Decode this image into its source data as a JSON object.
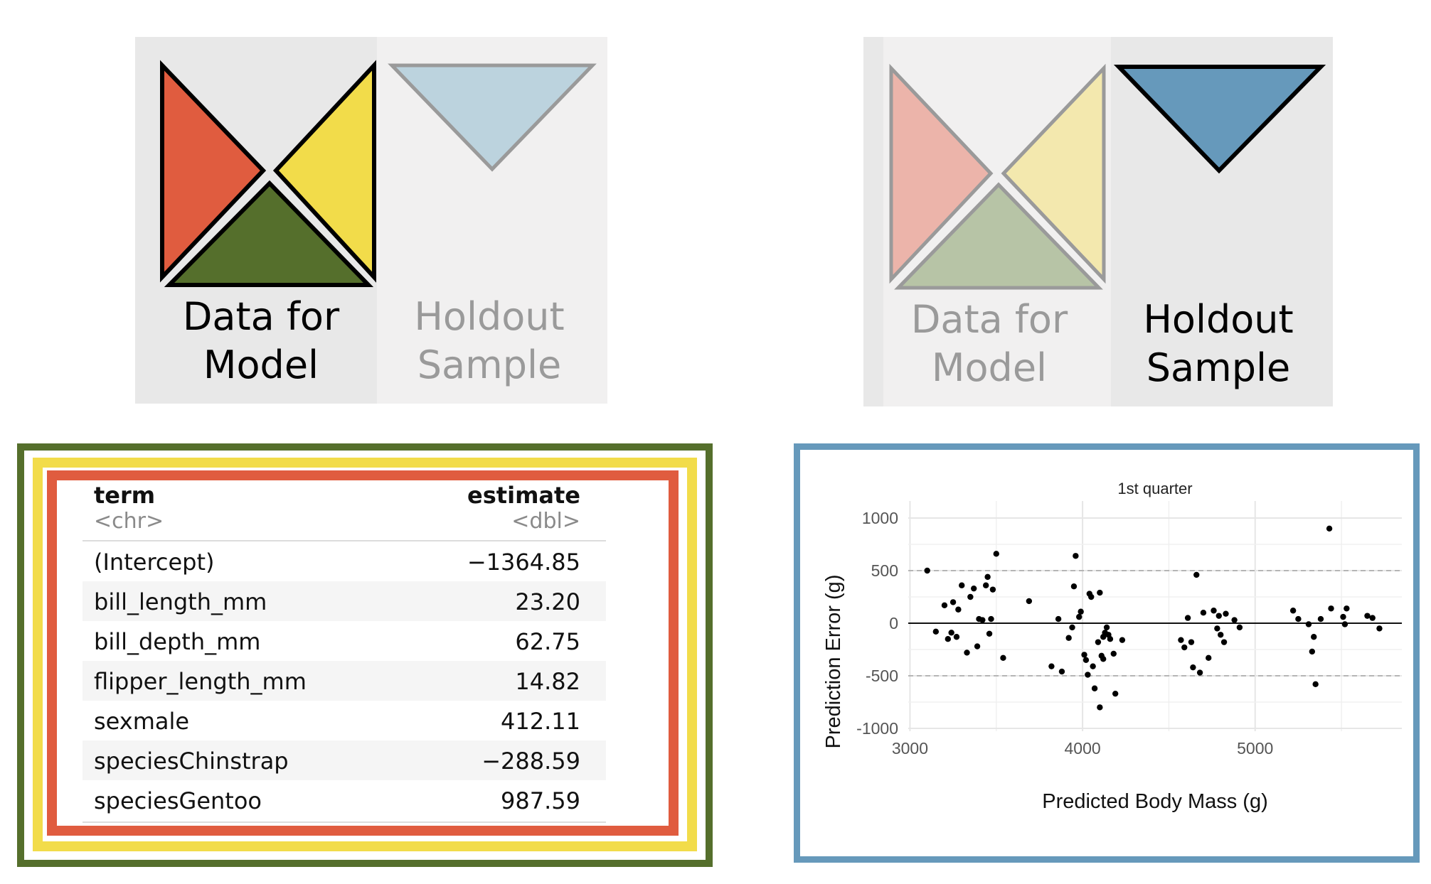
{
  "left_panel": {
    "model_label": "Data for\nModel",
    "holdout_label": "Holdout\nSample"
  },
  "right_panel": {
    "model_label": "Data for\nModel",
    "holdout_label": "Holdout\nSample"
  },
  "colors": {
    "red": "#e05c3f",
    "yellow": "#f2dc4a",
    "green": "#556f2c",
    "blue": "#6699bb",
    "light_blue": "#bcd3de",
    "red_faded": "#ecb4aa",
    "yellow_faded": "#f3e8ae",
    "green_faded": "#b7c4a6"
  },
  "table": {
    "header": {
      "term": "term",
      "estimate": "estimate"
    },
    "types": {
      "term": "<chr>",
      "estimate": "<dbl>"
    },
    "rows": [
      {
        "term": "(Intercept)",
        "estimate": "−1364.85"
      },
      {
        "term": "bill_length_mm",
        "estimate": "23.20"
      },
      {
        "term": "bill_depth_mm",
        "estimate": "62.75"
      },
      {
        "term": "flipper_length_mm",
        "estimate": "14.82"
      },
      {
        "term": "sexmale",
        "estimate": "412.11"
      },
      {
        "term": "speciesChinstrap",
        "estimate": "−288.59"
      },
      {
        "term": "speciesGentoo",
        "estimate": "987.59"
      }
    ]
  },
  "chart_data": {
    "type": "scatter",
    "title": "1st quarter",
    "xlabel": "Predicted Body Mass (g)",
    "ylabel": "Prediction Error (g)",
    "xlim": [
      2990,
      5850
    ],
    "ylim": [
      -1000,
      1000
    ],
    "x_ticks": [
      3000,
      4000,
      5000
    ],
    "y_ticks": [
      1000,
      500,
      0,
      -500,
      -1000
    ],
    "reference_lines": {
      "solid": [
        0
      ],
      "dashed": [
        500,
        -500
      ]
    },
    "grid": true,
    "points": [
      [
        3100,
        500
      ],
      [
        3150,
        -80
      ],
      [
        3200,
        170
      ],
      [
        3220,
        -150
      ],
      [
        3240,
        -90
      ],
      [
        3250,
        200
      ],
      [
        3270,
        -130
      ],
      [
        3280,
        130
      ],
      [
        3300,
        360
      ],
      [
        3330,
        -280
      ],
      [
        3350,
        250
      ],
      [
        3370,
        330
      ],
      [
        3390,
        -220
      ],
      [
        3400,
        40
      ],
      [
        3420,
        30
      ],
      [
        3440,
        360
      ],
      [
        3450,
        440
      ],
      [
        3460,
        -100
      ],
      [
        3470,
        40
      ],
      [
        3480,
        320
      ],
      [
        3500,
        660
      ],
      [
        3540,
        -330
      ],
      [
        3690,
        210
      ],
      [
        3820,
        -410
      ],
      [
        3860,
        40
      ],
      [
        3880,
        -460
      ],
      [
        3920,
        -140
      ],
      [
        3940,
        -40
      ],
      [
        3950,
        350
      ],
      [
        3960,
        640
      ],
      [
        3980,
        60
      ],
      [
        3990,
        110
      ],
      [
        4010,
        -300
      ],
      [
        4020,
        -350
      ],
      [
        4030,
        -490
      ],
      [
        4040,
        280
      ],
      [
        4050,
        250
      ],
      [
        4060,
        -410
      ],
      [
        4070,
        -620
      ],
      [
        4090,
        -180
      ],
      [
        4100,
        -800
      ],
      [
        4100,
        290
      ],
      [
        4110,
        -310
      ],
      [
        4120,
        -130
      ],
      [
        4120,
        -340
      ],
      [
        4130,
        -90
      ],
      [
        4140,
        -40
      ],
      [
        4150,
        -110
      ],
      [
        4160,
        -150
      ],
      [
        4180,
        -290
      ],
      [
        4190,
        -670
      ],
      [
        4230,
        -160
      ],
      [
        4570,
        -160
      ],
      [
        4590,
        -230
      ],
      [
        4610,
        50
      ],
      [
        4630,
        -180
      ],
      [
        4640,
        -420
      ],
      [
        4660,
        460
      ],
      [
        4680,
        -470
      ],
      [
        4700,
        100
      ],
      [
        4730,
        -330
      ],
      [
        4760,
        120
      ],
      [
        4780,
        -50
      ],
      [
        4790,
        70
      ],
      [
        4800,
        -110
      ],
      [
        4820,
        -180
      ],
      [
        4830,
        90
      ],
      [
        4880,
        30
      ],
      [
        4910,
        -40
      ],
      [
        5220,
        120
      ],
      [
        5250,
        40
      ],
      [
        5310,
        -10
      ],
      [
        5330,
        -270
      ],
      [
        5340,
        -130
      ],
      [
        5350,
        -580
      ],
      [
        5380,
        40
      ],
      [
        5430,
        900
      ],
      [
        5440,
        140
      ],
      [
        5510,
        60
      ],
      [
        5520,
        -10
      ],
      [
        5530,
        140
      ],
      [
        5650,
        70
      ],
      [
        5680,
        50
      ],
      [
        5720,
        -50
      ]
    ]
  }
}
